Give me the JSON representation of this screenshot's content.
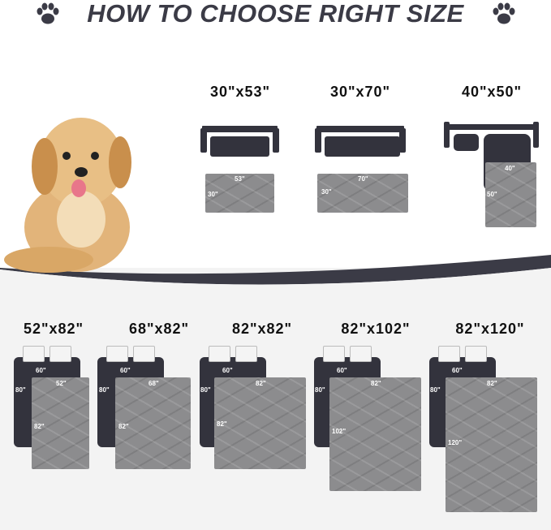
{
  "title": "HOW TO CHOOSE RIGHT SIZE",
  "colors": {
    "title": "#3b3b46",
    "bed": "#33333d",
    "mat": "#8c8c8e",
    "background_bottom": "#f3f3f3"
  },
  "icons": [
    "paw-icon",
    "dog-photo",
    "sofa-icon",
    "bed-icon"
  ],
  "sofa_sizes": [
    {
      "label": "30\"x53\"",
      "width": "53\"",
      "height": "30\""
    },
    {
      "label": "30\"x70\"",
      "width": "70\"",
      "height": "30\""
    },
    {
      "label": "40\"x50\"",
      "width": "40\"",
      "height": "50\""
    }
  ],
  "bed_sizes": [
    {
      "label": "52\"x82\"",
      "bed_w": "60\"",
      "bed_h": "80\"",
      "width": "52\"",
      "height": "82\""
    },
    {
      "label": "68\"x82\"",
      "bed_w": "60\"",
      "bed_h": "80\"",
      "width": "68\"",
      "height": "82\""
    },
    {
      "label": "82\"x82\"",
      "bed_w": "60\"",
      "bed_h": "80\"",
      "width": "82\"",
      "height": "82\""
    },
    {
      "label": "82\"x102\"",
      "bed_w": "60\"",
      "bed_h": "80\"",
      "width": "82\"",
      "height": "102\""
    },
    {
      "label": "82\"x120\"",
      "bed_w": "60\"",
      "bed_h": "80\"",
      "width": "82\"",
      "height": "120\""
    }
  ]
}
